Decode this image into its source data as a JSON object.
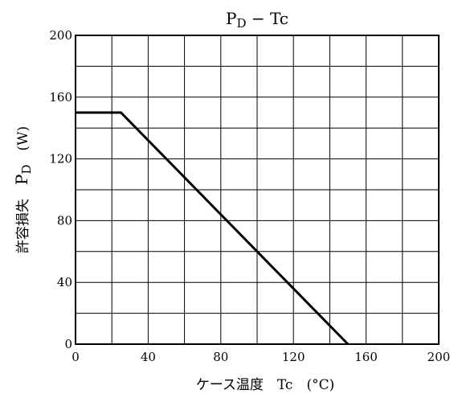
{
  "chart_data": {
    "type": "line",
    "title": "P_D − Tc",
    "title_main": "P",
    "title_sub": "D",
    "title_rest": " − Tc",
    "xlabel": "ケース温度　Tc　(°C)",
    "ylabel_jp": "許容損失　",
    "ylabel_sym": "P",
    "ylabel_sub": "D",
    "ylabel_unit": "　(W)",
    "xlim": [
      0,
      200
    ],
    "ylim": [
      0,
      200
    ],
    "x_ticks": [
      "0",
      "40",
      "80",
      "120",
      "160",
      "200"
    ],
    "y_ticks": [
      "0",
      "40",
      "80",
      "120",
      "160",
      "200"
    ],
    "grid": true,
    "series": [
      {
        "x": [
          0,
          25,
          150
        ],
        "y": [
          150,
          150,
          0
        ]
      }
    ]
  }
}
